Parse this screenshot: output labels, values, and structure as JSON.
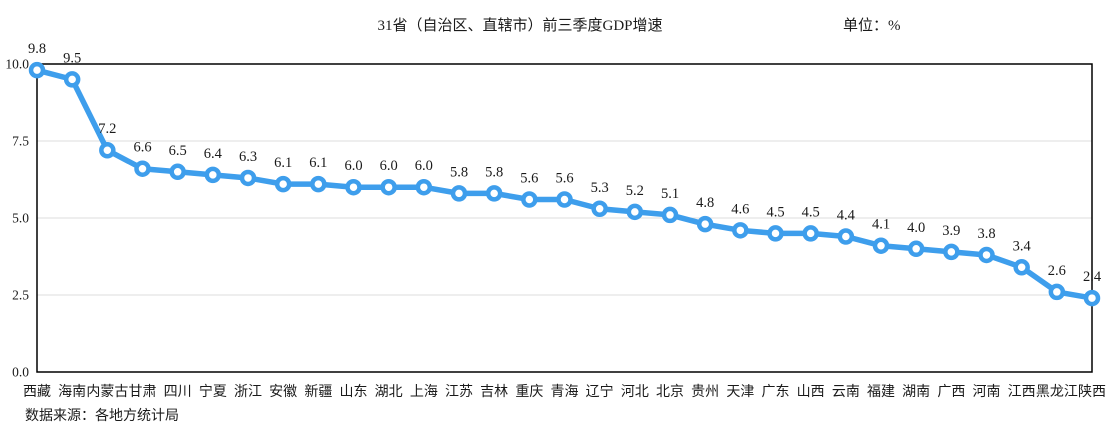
{
  "page": {
    "title": "31省（自治区、直辖市）前三季度GDP增速",
    "unit_label": "单位：%",
    "source_note": "数据来源：各地方统计局"
  },
  "chart_data": {
    "type": "line",
    "title": "31省（自治区、直辖市）前三季度GDP增速",
    "unit": "%",
    "categories": [
      "西藏",
      "海南",
      "内蒙古",
      "甘肃",
      "四川",
      "宁夏",
      "浙江",
      "安徽",
      "新疆",
      "山东",
      "湖北",
      "上海",
      "江苏",
      "吉林",
      "重庆",
      "青海",
      "辽宁",
      "河北",
      "北京",
      "贵州",
      "天津",
      "广东",
      "山西",
      "云南",
      "福建",
      "湖南",
      "广西",
      "河南",
      "江西",
      "黑龙江",
      "陕西"
    ],
    "values": [
      9.8,
      9.5,
      7.2,
      6.6,
      6.5,
      6.4,
      6.3,
      6.1,
      6.1,
      6.0,
      6.0,
      6.0,
      5.8,
      5.8,
      5.6,
      5.6,
      5.3,
      5.2,
      5.1,
      4.8,
      4.6,
      4.5,
      4.5,
      4.4,
      4.1,
      4.0,
      3.9,
      3.8,
      3.4,
      2.6,
      2.4
    ],
    "ylim": [
      0,
      10
    ],
    "yticks": [
      0.0,
      2.5,
      5.0,
      7.5,
      10.0
    ],
    "ytick_decimals": 1,
    "data_label_decimals": 1,
    "grid": "horizontal-light",
    "legend": "none",
    "line_color": "#3E9EEC",
    "marker_style": "circle-white-center",
    "frame_color": "#000000",
    "gridline_color": "#dcdcdc",
    "source": "数据来源：各地方统计局"
  }
}
